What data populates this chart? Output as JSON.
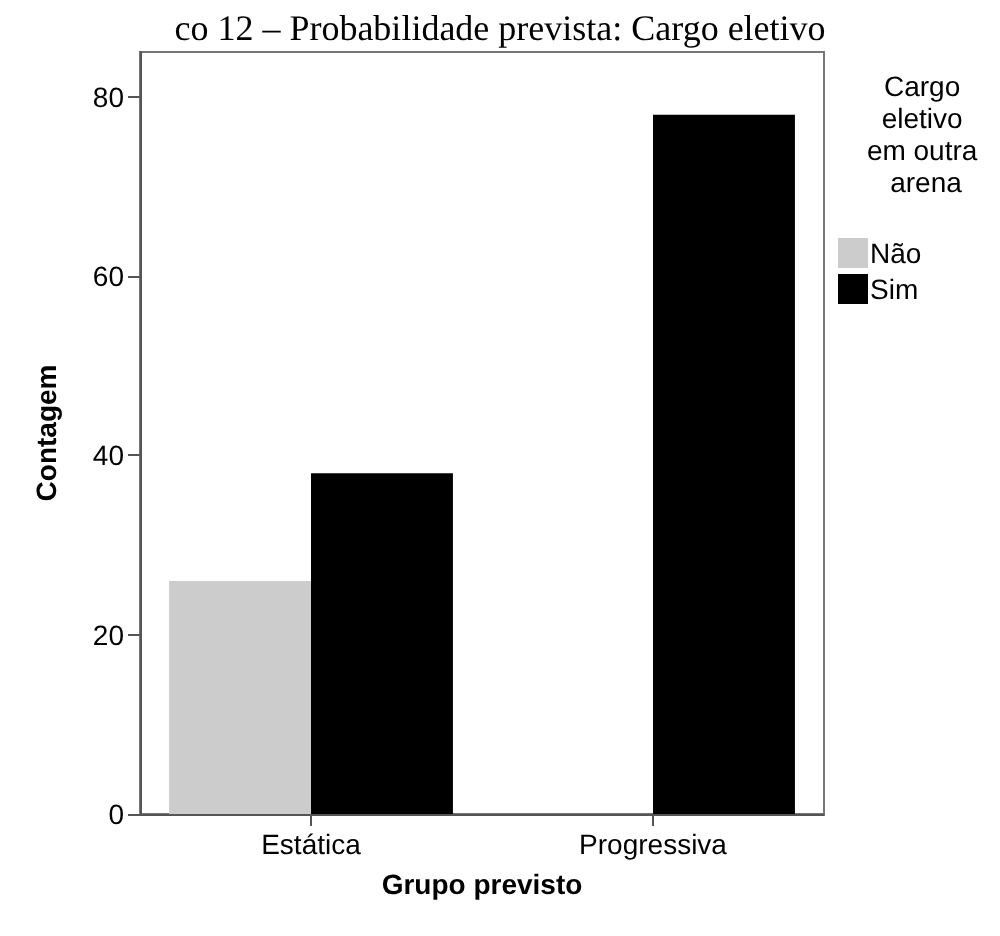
{
  "chart_data": {
    "type": "bar",
    "title": "co 12 – Probabilidade prevista: Cargo eletivo",
    "xlabel": "Grupo previsto",
    "ylabel": "Contagem",
    "legend_title": "Cargo eletivo em outra arena",
    "categories": [
      "Estática",
      "Progressiva"
    ],
    "series": [
      {
        "name": "Não",
        "color": "#cccccc",
        "values": [
          26,
          0
        ]
      },
      {
        "name": "Sim",
        "color": "#000000",
        "values": [
          38,
          78
        ]
      }
    ],
    "ylim": [
      0,
      85
    ],
    "yticks": [
      0,
      20,
      40,
      60,
      80
    ],
    "grid": false,
    "legend": "right"
  }
}
